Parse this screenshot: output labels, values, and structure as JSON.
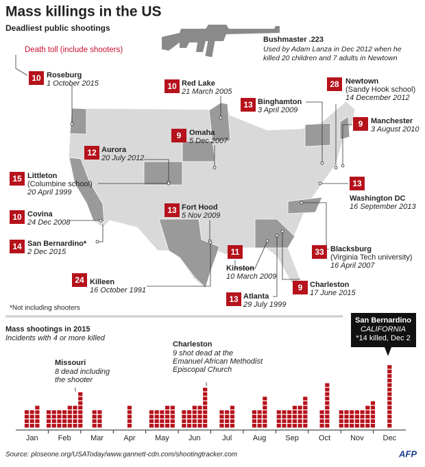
{
  "header": {
    "title": "Mass killings in the US",
    "subtitle": "Deadliest public shootings"
  },
  "gun": {
    "name": "Bushmaster .223",
    "description": [
      "Used by Adam Lanza in Dec 2012 when he",
      "killed 20 children and 7 adults in Newtown"
    ]
  },
  "map": {
    "legend": "Death toll (include shooters)",
    "footnote": "*Not including shooters",
    "shootings": [
      {
        "count": "10",
        "place": "Roseburg",
        "date": "1 October 2015"
      },
      {
        "count": "10",
        "place": "Red Lake",
        "date": "21 March 2005"
      },
      {
        "count": "13",
        "place": "Binghamton",
        "date": "3 April 2009"
      },
      {
        "count": "28",
        "place": "Newtown",
        "detail": "(Sandy Hook school)",
        "date": "14 December 2012"
      },
      {
        "count": "9",
        "place": "Manchester",
        "date": "3 August 2010"
      },
      {
        "count": "9",
        "place": "Omaha",
        "date": "5 Dec 2007"
      },
      {
        "count": "12",
        "place": "Aurora",
        "date": "20 July 2012"
      },
      {
        "count": "15",
        "place": "Littleton",
        "detail": "(Columbine school)",
        "date": "20 April 1999"
      },
      {
        "count": "13",
        "place": "Washington DC",
        "date": "16 September 2013"
      },
      {
        "count": "10",
        "place": "Covina",
        "date": "24 Dec 2008"
      },
      {
        "count": "13",
        "place": "Fort Hood",
        "date": "5 Nov 2009"
      },
      {
        "count": "14",
        "place": "San Bernardino*",
        "date": "2 Dec 2015"
      },
      {
        "count": "33",
        "place": "Blacksburg",
        "detail": "(Virginia Tech university)",
        "date": "16 April 2007"
      },
      {
        "count": "11",
        "place": "Kinston",
        "date": "10 March 2009"
      },
      {
        "count": "24",
        "place": "Killeen",
        "date": "16 October 1991"
      },
      {
        "count": "9",
        "place": "Charleston",
        "date": "17 June 2015"
      },
      {
        "count": "13",
        "place": "Atlanta",
        "date": "29 July 1999"
      }
    ]
  },
  "chart_data": {
    "type": "bar",
    "title": "Mass shootings in 2015",
    "subtitle": "Incidents with 4 or more killed",
    "color": "#b5121b",
    "categories": [
      "Jan",
      "Feb",
      "Mar",
      "Apr",
      "May",
      "Jun",
      "Jul",
      "Aug",
      "Sep",
      "Oct",
      "Nov",
      "Dec"
    ],
    "values": [
      [
        4,
        4,
        5
      ],
      [
        4,
        4,
        4,
        4,
        5,
        5,
        8
      ],
      [
        4,
        4
      ],
      [
        5
      ],
      [
        4,
        4,
        4,
        5,
        5
      ],
      [
        4,
        4,
        5,
        5,
        9
      ],
      [
        4,
        4,
        5
      ],
      [
        4,
        4,
        7
      ],
      [
        4,
        4,
        4,
        5,
        5,
        7
      ],
      [
        4,
        10
      ],
      [
        4,
        4,
        4,
        4,
        4,
        5,
        6
      ],
      [
        14
      ]
    ],
    "annotations": [
      {
        "title": "Missouri",
        "text": [
          "8 dead including",
          "the shooter"
        ]
      },
      {
        "title": "Charleston",
        "text": [
          "9 shot dead at the",
          "Emanuel African Methodist",
          "Episcopal Church"
        ]
      },
      {
        "title": "San Bernardino",
        "sub": "CALIFORNIA",
        "text": [
          "*14 killed, Dec 2"
        ]
      }
    ]
  },
  "source": "Source: ploseone.org/USAToday/www.gannett-cdn.com/shootingtracker.com",
  "logo": "AFP"
}
